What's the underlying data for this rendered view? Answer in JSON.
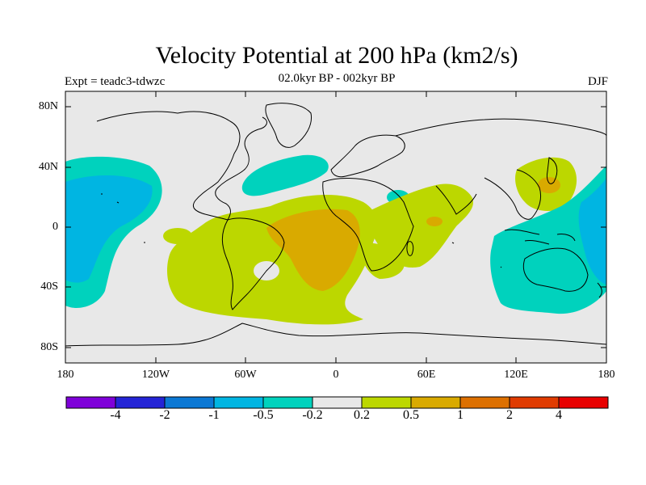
{
  "title": "Velocity Potential at 200 hPa (km2/s)",
  "subtitle": "02.0kyr BP - 002kyr BP",
  "experiment": "Expt = teadc3-tdwzc",
  "season": "DJF",
  "lat_labels": [
    "80N",
    "40N",
    "0",
    "40S",
    "80S"
  ],
  "lon_labels": [
    "180",
    "120W",
    "60W",
    "0",
    "60E",
    "120E",
    "180"
  ],
  "colorbar": {
    "colors": [
      "#7f00d9",
      "#2424d6",
      "#0b78d4",
      "#00b5e2",
      "#00d2bd",
      "#e8e8e8",
      "#bcd700",
      "#d9aa00",
      "#dd7000",
      "#e03b00",
      "#e80000"
    ],
    "labels": [
      "-4",
      "-2",
      "-1",
      "-0.5",
      "-0.2",
      "0.2",
      "0.5",
      "1",
      "2",
      "4"
    ]
  },
  "colors": {
    "background": "#e8e8e8",
    "neg_light": "#00d2bd",
    "neg_mid": "#00b5e2",
    "pos_light": "#bcd700",
    "pos_mid": "#d9aa00",
    "coast": "#000000"
  }
}
